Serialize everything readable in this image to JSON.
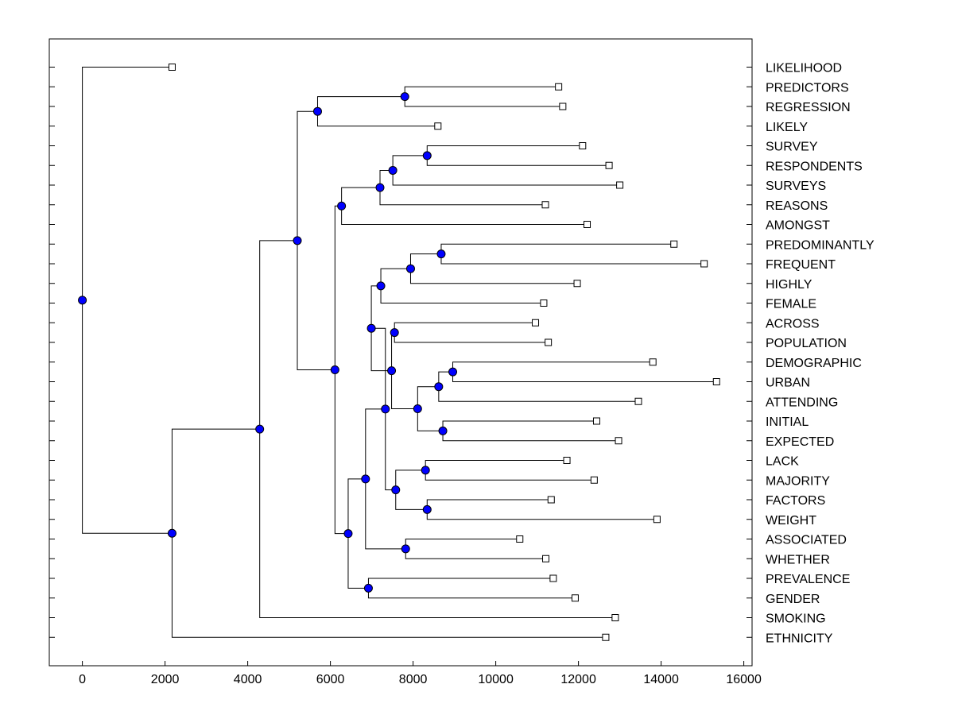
{
  "chart_data": {
    "type": "dendrogram",
    "title": "",
    "xlabel": "",
    "ylabel": "",
    "xlim": [
      -800,
      16200
    ],
    "xticks": [
      0,
      2000,
      4000,
      6000,
      8000,
      10000,
      12000,
      14000,
      16000
    ],
    "xtick_labels": [
      "0",
      "2000",
      "4000",
      "6000",
      "8000",
      "10000",
      "12000",
      "14000",
      "16000"
    ],
    "grid": false,
    "label_position": "right",
    "colors": {
      "node": "#0000ff",
      "leaf": "#ffffff",
      "line": "#000000"
    },
    "leaves": [
      {
        "name": "LIKELIHOOD",
        "x": 2170
      },
      {
        "name": "PREDICTORS",
        "x": 11520
      },
      {
        "name": "REGRESSION",
        "x": 11620
      },
      {
        "name": "LIKELY",
        "x": 8600
      },
      {
        "name": "SURVEY",
        "x": 12100
      },
      {
        "name": "RESPONDENTS",
        "x": 12740
      },
      {
        "name": "SURVEYS",
        "x": 13000
      },
      {
        "name": "REASONS",
        "x": 11200
      },
      {
        "name": "AMONGST",
        "x": 12210
      },
      {
        "name": "PREDOMINANTLY",
        "x": 14310
      },
      {
        "name": "FREQUENT",
        "x": 15040
      },
      {
        "name": "HIGHLY",
        "x": 11970
      },
      {
        "name": "FEMALE",
        "x": 11160
      },
      {
        "name": "ACROSS",
        "x": 10960
      },
      {
        "name": "POPULATION",
        "x": 11270
      },
      {
        "name": "DEMOGRAPHIC",
        "x": 13800
      },
      {
        "name": "URBAN",
        "x": 15340
      },
      {
        "name": "ATTENDING",
        "x": 13450
      },
      {
        "name": "INITIAL",
        "x": 12440
      },
      {
        "name": "EXPECTED",
        "x": 12970
      },
      {
        "name": "LACK",
        "x": 11720
      },
      {
        "name": "MAJORITY",
        "x": 12380
      },
      {
        "name": "FACTORS",
        "x": 11340
      },
      {
        "name": "WEIGHT",
        "x": 13900
      },
      {
        "name": "ASSOCIATED",
        "x": 10580
      },
      {
        "name": "WHETHER",
        "x": 11210
      },
      {
        "name": "PREVALENCE",
        "x": 11390
      },
      {
        "name": "GENDER",
        "x": 11920
      },
      {
        "name": "SMOKING",
        "x": 12890
      },
      {
        "name": "ETHNICITY",
        "x": 12660
      }
    ],
    "merges": [
      {
        "id": "n_pr",
        "x": 7800,
        "children": [
          "PREDICTORS",
          "REGRESSION"
        ]
      },
      {
        "id": "n_prl",
        "x": 5690,
        "children": [
          "n_pr",
          "LIKELY"
        ]
      },
      {
        "id": "n_sr",
        "x": 8340,
        "children": [
          "SURVEY",
          "RESPONDENTS"
        ]
      },
      {
        "id": "n_srs",
        "x": 7510,
        "children": [
          "n_sr",
          "SURVEYS"
        ]
      },
      {
        "id": "n_srsr",
        "x": 7200,
        "children": [
          "n_srs",
          "REASONS"
        ]
      },
      {
        "id": "n_srsra",
        "x": 6270,
        "children": [
          "n_srsr",
          "AMONGST"
        ]
      },
      {
        "id": "n_pf",
        "x": 8680,
        "children": [
          "PREDOMINANTLY",
          "FREQUENT"
        ]
      },
      {
        "id": "n_pfh",
        "x": 7940,
        "children": [
          "n_pf",
          "HIGHLY"
        ]
      },
      {
        "id": "n_pfhf",
        "x": 7220,
        "children": [
          "n_pfh",
          "FEMALE"
        ]
      },
      {
        "id": "n_ap",
        "x": 7550,
        "children": [
          "ACROSS",
          "POPULATION"
        ]
      },
      {
        "id": "n_du",
        "x": 8960,
        "children": [
          "DEMOGRAPHIC",
          "URBAN"
        ]
      },
      {
        "id": "n_dua",
        "x": 8620,
        "children": [
          "n_du",
          "ATTENDING"
        ]
      },
      {
        "id": "n_ie",
        "x": 8720,
        "children": [
          "INITIAL",
          "EXPECTED"
        ]
      },
      {
        "id": "n_duaie",
        "x": 8110,
        "children": [
          "n_dua",
          "n_ie"
        ]
      },
      {
        "id": "n_apx",
        "x": 7480,
        "children": [
          "n_ap",
          "n_duaie"
        ]
      },
      {
        "id": "n_femx",
        "x": 6990,
        "children": [
          "n_pfhf",
          "n_apx"
        ]
      },
      {
        "id": "n_lm",
        "x": 8300,
        "children": [
          "LACK",
          "MAJORITY"
        ]
      },
      {
        "id": "n_fw",
        "x": 8340,
        "children": [
          "FACTORS",
          "WEIGHT"
        ]
      },
      {
        "id": "n_lmfw",
        "x": 7580,
        "children": [
          "n_lm",
          "n_fw"
        ]
      },
      {
        "id": "n_mid",
        "x": 7330,
        "children": [
          "n_femx",
          "n_lmfw"
        ]
      },
      {
        "id": "n_aw",
        "x": 7820,
        "children": [
          "ASSOCIATED",
          "WHETHER"
        ]
      },
      {
        "id": "n_midaw",
        "x": 6850,
        "children": [
          "n_mid",
          "n_aw"
        ]
      },
      {
        "id": "n_pg",
        "x": 6920,
        "children": [
          "PREVALENCE",
          "GENDER"
        ]
      },
      {
        "id": "n_big",
        "x": 6430,
        "children": [
          "n_midaw",
          "n_pg"
        ]
      },
      {
        "id": "n_lower",
        "x": 6110,
        "children": [
          "n_srsra",
          "n_big"
        ]
      },
      {
        "id": "n_upper",
        "x": 5200,
        "children": [
          "n_prl",
          "n_lower"
        ]
      },
      {
        "id": "n_smk",
        "x": 4290,
        "children": [
          "n_upper",
          "SMOKING"
        ]
      },
      {
        "id": "n_eth",
        "x": 2170,
        "children": [
          "n_smk",
          "ETHNICITY"
        ]
      },
      {
        "id": "n_root",
        "x": 0,
        "children": [
          "LIKELIHOOD",
          "n_eth"
        ]
      }
    ]
  }
}
